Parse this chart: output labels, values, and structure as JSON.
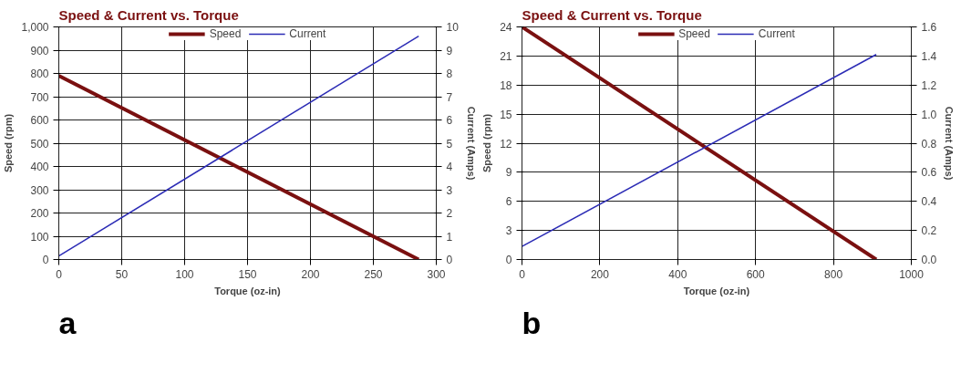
{
  "chart_data": [
    {
      "type": "line",
      "title": "Speed & Current vs. Torque",
      "xlabel": "Torque (oz-in)",
      "ylabel": "Speed (rpm)",
      "y2label": "Current (Amps)",
      "series": [
        {
          "name": "Speed",
          "color": "#7a1010",
          "x": [
            0,
            286
          ],
          "values": [
            790,
            0
          ]
        },
        {
          "name": "Current",
          "color": "#2b2bb5",
          "x": [
            0,
            286
          ],
          "values": [
            0.15,
            9.6
          ],
          "axis": "y2"
        }
      ],
      "xlim": [
        0,
        300
      ],
      "xticks": [
        0,
        50,
        100,
        150,
        200,
        250,
        300
      ],
      "ylim": [
        0,
        1000
      ],
      "yticks": [
        0,
        100,
        200,
        300,
        400,
        500,
        600,
        700,
        800,
        900,
        {
          "value": 1000,
          "label": "1,000"
        }
      ],
      "y2lim": [
        0,
        10
      ],
      "y2ticks": [
        0,
        1,
        2,
        3,
        4,
        5,
        6,
        7,
        8,
        9,
        10
      ],
      "grid": true,
      "legend": "top",
      "annotations": [
        "a"
      ]
    },
    {
      "type": "line",
      "title": "Speed & Current vs. Torque",
      "xlabel": "Torque (oz-in)",
      "ylabel": "Speed (rpm)",
      "y2label": "Current (Amps)",
      "series": [
        {
          "name": "Speed",
          "color": "#7a1010",
          "x": [
            0,
            910
          ],
          "values": [
            24,
            0
          ]
        },
        {
          "name": "Current",
          "color": "#2b2bb5",
          "x": [
            0,
            910
          ],
          "values": [
            0.09,
            1.41
          ],
          "axis": "y2"
        }
      ],
      "xlim": [
        0,
        1000
      ],
      "xticks": [
        0,
        200,
        400,
        600,
        800,
        1000
      ],
      "ylim": [
        0,
        24
      ],
      "yticks": [
        0,
        3,
        6,
        9,
        12,
        15,
        18,
        21,
        24
      ],
      "y2lim": [
        0,
        1.6
      ],
      "y2ticks": [
        {
          "value": 0,
          "label": "0.0"
        },
        0.2,
        0.4,
        0.6,
        0.8,
        {
          "value": 1,
          "label": "1.0"
        },
        1.2,
        1.4,
        1.6
      ],
      "grid": true,
      "legend": "top",
      "annotations": [
        "b"
      ]
    }
  ]
}
